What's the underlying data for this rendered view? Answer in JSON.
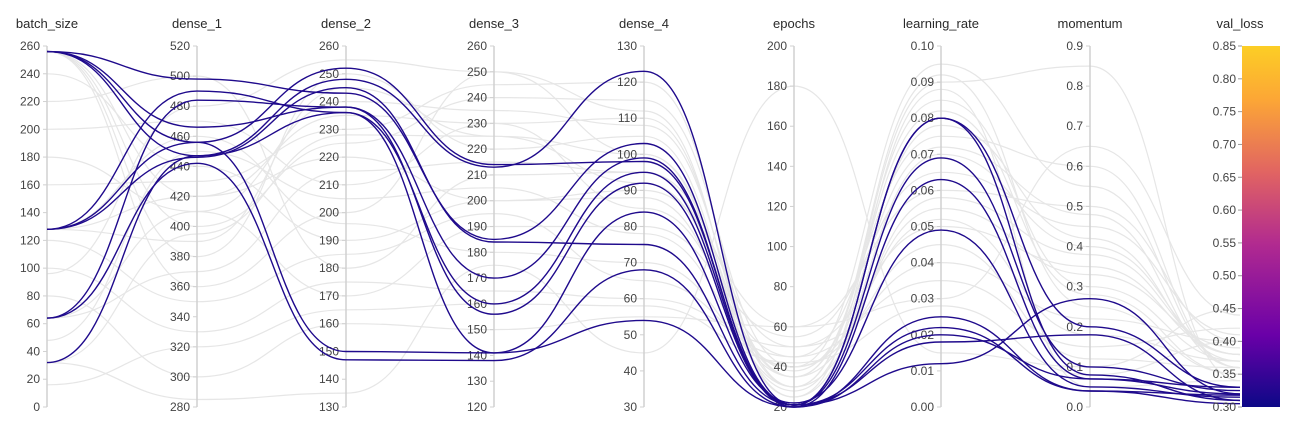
{
  "chart_data": {
    "type": "parallel_coordinates",
    "title": "",
    "colors": {
      "highlight": "#1f0a8c",
      "background": "#e6e6e6",
      "axis": "#d0d0d0"
    },
    "axes": [
      {
        "name": "batch_size",
        "range": [
          0,
          260
        ],
        "ticks": [
          "0",
          "20",
          "40",
          "60",
          "80",
          "100",
          "120",
          "140",
          "160",
          "180",
          "200",
          "220",
          "240",
          "260"
        ]
      },
      {
        "name": "dense_1",
        "range": [
          280,
          520
        ],
        "ticks": [
          "280",
          "300",
          "320",
          "340",
          "360",
          "380",
          "400",
          "420",
          "440",
          "460",
          "480",
          "500",
          "520"
        ]
      },
      {
        "name": "dense_2",
        "range": [
          130,
          260
        ],
        "ticks": [
          "130",
          "140",
          "150",
          "160",
          "170",
          "180",
          "190",
          "200",
          "210",
          "220",
          "230",
          "240",
          "250",
          "260"
        ]
      },
      {
        "name": "dense_3",
        "range": [
          120,
          260
        ],
        "ticks": [
          "120",
          "130",
          "140",
          "150",
          "160",
          "170",
          "180",
          "190",
          "200",
          "210",
          "220",
          "230",
          "240",
          "250",
          "260"
        ]
      },
      {
        "name": "dense_4",
        "range": [
          30,
          130
        ],
        "ticks": [
          "30",
          "40",
          "50",
          "60",
          "70",
          "80",
          "90",
          "100",
          "110",
          "120",
          "130"
        ]
      },
      {
        "name": "epochs",
        "range": [
          20,
          200
        ],
        "ticks": [
          "20",
          "40",
          "60",
          "80",
          "100",
          "120",
          "140",
          "160",
          "180",
          "200"
        ]
      },
      {
        "name": "learning_rate",
        "range": [
          0,
          0.1
        ],
        "ticks": [
          "0.00",
          "0.01",
          "0.02",
          "0.03",
          "0.04",
          "0.05",
          "0.06",
          "0.07",
          "0.08",
          "0.09",
          "0.10"
        ]
      },
      {
        "name": "momentum",
        "range": [
          0,
          0.9
        ],
        "ticks": [
          "0.0",
          "0.1",
          "0.2",
          "0.3",
          "0.4",
          "0.5",
          "0.6",
          "0.7",
          "0.8",
          "0.9"
        ]
      },
      {
        "name": "val_loss",
        "range": [
          0.3,
          0.85
        ],
        "ticks": [
          "0.30",
          "0.35",
          "0.40",
          "0.45",
          "0.50",
          "0.55",
          "0.60",
          "0.65",
          "0.70",
          "0.75",
          "0.80",
          "0.85"
        ]
      }
    ],
    "colorbar": {
      "label": "val_loss",
      "range": [
        0.3,
        0.85
      ],
      "stops": [
        "#0d0887",
        "#6a00a8",
        "#b12a90",
        "#e16462",
        "#fca636",
        "#f0f921"
      ]
    },
    "highlighted_runs": [
      [
        256,
        447,
        248,
        213,
        123,
        21,
        0.08,
        0.2,
        0.33
      ],
      [
        256,
        498,
        243,
        185,
        103,
        21,
        0.069,
        0.1,
        0.325
      ],
      [
        256,
        466,
        238,
        170,
        99,
        20,
        0.063,
        0.07,
        0.32
      ],
      [
        256,
        456,
        150,
        141,
        84,
        22,
        0.049,
        0.05,
        0.315
      ],
      [
        128,
        456,
        252,
        214,
        98,
        21,
        0.08,
        0.08,
        0.31
      ],
      [
        128,
        490,
        236,
        160,
        95,
        21,
        0.022,
        0.04,
        0.318
      ],
      [
        128,
        446,
        245,
        184,
        75,
        21,
        0.018,
        0.18,
        0.31
      ],
      [
        64,
        484,
        238,
        156,
        92,
        21,
        0.012,
        0.27,
        0.32
      ],
      [
        64,
        442,
        147,
        138,
        68,
        20,
        0.025,
        0.04,
        0.305
      ],
      [
        32,
        447,
        236,
        141,
        54,
        20,
        0.02,
        0.07,
        0.33
      ]
    ],
    "background_runs": [
      [
        256,
        420,
        235,
        230,
        110,
        30,
        0.09,
        0.85,
        0.34
      ],
      [
        256,
        400,
        225,
        240,
        115,
        40,
        0.095,
        0.55,
        0.36
      ],
      [
        256,
        380,
        250,
        220,
        105,
        25,
        0.07,
        0.4,
        0.38
      ],
      [
        256,
        360,
        200,
        250,
        100,
        35,
        0.085,
        0.3,
        0.37
      ],
      [
        240,
        440,
        190,
        200,
        90,
        60,
        0.06,
        0.5,
        0.4
      ],
      [
        220,
        500,
        180,
        210,
        95,
        50,
        0.05,
        0.35,
        0.38
      ],
      [
        200,
        470,
        210,
        230,
        85,
        45,
        0.075,
        0.6,
        0.36
      ],
      [
        180,
        410,
        170,
        190,
        80,
        55,
        0.065,
        0.45,
        0.41
      ],
      [
        160,
        430,
        230,
        245,
        120,
        30,
        0.092,
        0.25,
        0.35
      ],
      [
        128,
        420,
        220,
        200,
        88,
        35,
        0.055,
        0.33,
        0.39
      ],
      [
        128,
        390,
        245,
        225,
        100,
        28,
        0.078,
        0.42,
        0.37
      ],
      [
        128,
        460,
        196,
        180,
        70,
        40,
        0.045,
        0.12,
        0.36
      ],
      [
        120,
        350,
        185,
        195,
        65,
        45,
        0.04,
        0.22,
        0.4
      ],
      [
        100,
        330,
        175,
        165,
        60,
        50,
        0.035,
        0.15,
        0.42
      ],
      [
        96,
        480,
        255,
        250,
        112,
        25,
        0.088,
        0.05,
        0.34
      ],
      [
        80,
        300,
        160,
        150,
        55,
        60,
        0.03,
        0.65,
        0.44
      ],
      [
        64,
        370,
        215,
        215,
        95,
        30,
        0.058,
        0.38,
        0.38
      ],
      [
        64,
        410,
        240,
        235,
        108,
        35,
        0.082,
        0.28,
        0.35
      ],
      [
        48,
        450,
        205,
        205,
        78,
        40,
        0.052,
        0.18,
        0.37
      ],
      [
        32,
        285,
        135,
        175,
        45,
        180,
        0.015,
        0.1,
        0.45
      ],
      [
        32,
        395,
        228,
        225,
        92,
        38,
        0.072,
        0.48,
        0.36
      ],
      [
        16,
        320,
        165,
        160,
        58,
        42,
        0.028,
        0.08,
        0.4
      ]
    ]
  }
}
